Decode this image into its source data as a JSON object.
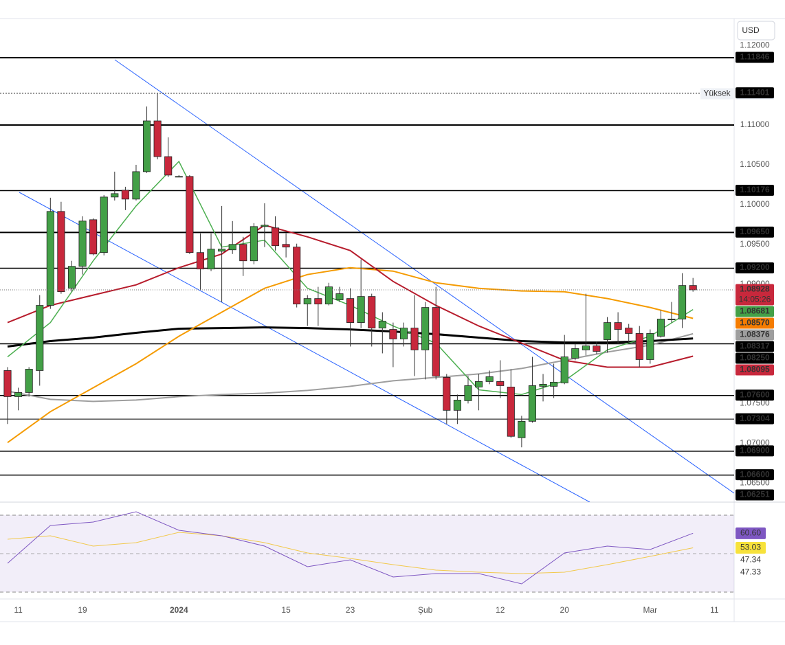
{
  "chart_data": {
    "type": "candlestick",
    "currency": "USD",
    "xlim": [
      -0.706,
      67.84
    ],
    "xticks": [
      {
        "value": 1,
        "label": "11"
      },
      {
        "value": 7,
        "label": "19"
      },
      {
        "value": 16,
        "label": "2024"
      },
      {
        "value": 26,
        "label": "15"
      },
      {
        "value": 32,
        "label": "23"
      },
      {
        "value": 39,
        "label": "Şub"
      },
      {
        "value": 46,
        "label": "12"
      },
      {
        "value": 52,
        "label": "20"
      },
      {
        "value": 60,
        "label": "Mar"
      },
      {
        "value": 66,
        "label": "11"
      }
    ],
    "ylim": [
      1.0626,
      1.1233
    ],
    "yticks": [
      {
        "value": 1.12,
        "label": "1.12000"
      },
      {
        "value": 1.11,
        "label": "1.11000"
      },
      {
        "value": 1.105,
        "label": "1.10500"
      },
      {
        "value": 1.1,
        "label": "1.10000"
      },
      {
        "value": 1.095,
        "label": "1.09500"
      },
      {
        "value": 1.09,
        "label": "1.09000"
      },
      {
        "value": 1.075,
        "label": "1.07500"
      },
      {
        "value": 1.07,
        "label": "1.07000"
      },
      {
        "value": 1.065,
        "label": "1.06500"
      }
    ],
    "up_color": "#43a047",
    "down_color": "#c8283c",
    "wick_color": "#333333",
    "candles": {
      "open": [
        1.07914,
        1.07586,
        1.07638,
        1.07914,
        1.08733,
        1.09914,
        1.08948,
        1.09224,
        1.0981,
        1.09397,
        1.10095,
        1.10181,
        1.10069,
        1.10414,
        1.11052,
        1.10603,
        1.10354,
        1.10354,
        1.09397,
        1.0919,
        1.09414,
        1.09431,
        1.095,
        1.09293,
        1.09724,
        1.09707,
        1.095,
        1.09466,
        1.0875,
        1.08819,
        1.0875,
        1.08802,
        1.08819,
        1.08517,
        1.08845,
        1.08448,
        1.08431,
        1.08311,
        1.08448,
        1.08173,
        1.08707,
        1.07828,
        1.07414,
        1.07535,
        1.07707,
        1.07776,
        1.07776,
        1.07707,
        1.07069,
        1.07276,
        1.07716,
        1.07716,
        1.07759,
        1.08069,
        1.08173,
        1.08224,
        1.08302,
        1.08517,
        1.08448,
        1.0838,
        1.08052,
        1.08345,
        1.08552,
        1.08561,
        1.08983
      ],
      "high": [
        1.07957,
        1.07698,
        1.07957,
        1.08862,
        1.10086,
        1.10035,
        1.09293,
        1.09853,
        1.09827,
        1.10121,
        1.10414,
        1.10224,
        1.105,
        1.11233,
        1.11393,
        1.10845,
        1.10371,
        1.10371,
        1.09638,
        1.09638,
        1.09983,
        1.09793,
        1.09595,
        1.09767,
        1.10017,
        1.09853,
        1.09638,
        1.09509,
        1.08862,
        1.08966,
        1.09017,
        1.08966,
        1.08948,
        1.0931,
        1.0888,
        1.08647,
        1.08517,
        1.08517,
        1.08862,
        1.08776,
        1.08966,
        1.07871,
        1.07612,
        1.07845,
        1.07871,
        1.07914,
        1.08043,
        1.07931,
        1.07345,
        1.08086,
        1.07871,
        1.08,
        1.08362,
        1.08259,
        1.0888,
        1.08276,
        1.08586,
        1.08647,
        1.085,
        1.08474,
        1.08431,
        1.08673,
        1.08776,
        1.09138,
        1.09078
      ],
      "low": [
        1.07242,
        1.07414,
        1.07586,
        1.07724,
        1.0869,
        1.0888,
        1.08905,
        1.09121,
        1.09362,
        1.09362,
        1.10052,
        1.09931,
        1.10052,
        1.10397,
        1.10569,
        1.10346,
        1.10345,
        1.09379,
        1.08931,
        1.09164,
        1.08776,
        1.09379,
        1.09103,
        1.0925,
        1.09466,
        1.09422,
        1.09336,
        1.08707,
        1.08474,
        1.08474,
        1.08733,
        1.08776,
        1.08216,
        1.08448,
        1.08216,
        1.0813,
        1.07957,
        1.08216,
        1.07845,
        1.07802,
        1.07802,
        1.07242,
        1.07242,
        1.075,
        1.07414,
        1.07742,
        1.07569,
        1.07069,
        1.06949,
        1.07259,
        1.07526,
        1.07569,
        1.07742,
        1.08043,
        1.08104,
        1.08121,
        1.08138,
        1.08259,
        1.08259,
        1.07957,
        1.08,
        1.08328,
        1.08517,
        1.08448,
        1.08905
      ],
      "close": [
        1.07586,
        1.07638,
        1.07931,
        1.08733,
        1.09914,
        1.08905,
        1.09224,
        1.09793,
        1.09379,
        1.10095,
        1.10138,
        1.10069,
        1.10414,
        1.11052,
        1.10603,
        1.10371,
        1.10354,
        1.09397,
        1.0919,
        1.0944,
        1.0944,
        1.095,
        1.09293,
        1.09724,
        1.09741,
        1.09483,
        1.09466,
        1.0875,
        1.08819,
        1.0875,
        1.08966,
        1.0888,
        1.08517,
        1.08845,
        1.08448,
        1.08535,
        1.08311,
        1.08448,
        1.08173,
        1.08707,
        1.07845,
        1.07414,
        1.07543,
        1.07724,
        1.07776,
        1.07837,
        1.07724,
        1.07087,
        1.07276,
        1.07724,
        1.07742,
        1.07768,
        1.08086,
        1.0819,
        1.08224,
        1.08155,
        1.08517,
        1.08431,
        1.0838,
        1.08052,
        1.0838,
        1.08561,
        1.08561,
        1.08983,
        1.08928
      ]
    },
    "series": [
      {
        "color": "#9e9e9e",
        "width": 2,
        "x": [
          0,
          4,
          8,
          12,
          16,
          20,
          24,
          28,
          32,
          36,
          40,
          44,
          48,
          52,
          56,
          60,
          64
        ],
        "values": [
          1.07655,
          1.07552,
          1.07526,
          1.07543,
          1.07586,
          1.07612,
          1.07629,
          1.07664,
          1.07716,
          1.07785,
          1.07828,
          1.07871,
          1.0794,
          1.08043,
          1.08147,
          1.08233,
          1.08376
        ]
      },
      {
        "color": "#000000",
        "width": 3,
        "x": [
          0,
          4,
          8,
          12,
          16,
          20,
          24,
          28,
          32,
          36,
          40,
          44,
          48,
          52,
          56,
          60,
          64
        ],
        "values": [
          1.08216,
          1.08285,
          1.08328,
          1.08388,
          1.0844,
          1.08448,
          1.08457,
          1.08448,
          1.08431,
          1.08405,
          1.08371,
          1.08328,
          1.08285,
          1.08267,
          1.08267,
          1.08285,
          1.08317
        ]
      },
      {
        "color": "#f59b00",
        "width": 2,
        "x": [
          0,
          4,
          8,
          12,
          16,
          20,
          24,
          28,
          32,
          36,
          40,
          44,
          48,
          52,
          56,
          60,
          64
        ],
        "values": [
          1.07009,
          1.07397,
          1.07698,
          1.08,
          1.08345,
          1.08647,
          1.08948,
          1.09121,
          1.09207,
          1.09164,
          1.09017,
          1.08948,
          1.08914,
          1.08905,
          1.08819,
          1.08707,
          1.0857
        ]
      },
      {
        "color": "#b71c2c",
        "width": 2,
        "x": [
          0,
          4,
          8,
          12,
          16,
          20,
          24,
          28,
          32,
          36,
          40,
          44,
          48,
          52,
          56,
          60,
          64
        ],
        "values": [
          1.08517,
          1.08733,
          1.08862,
          1.08991,
          1.09207,
          1.09379,
          1.09741,
          1.09595,
          1.09422,
          1.09034,
          1.08733,
          1.08474,
          1.08259,
          1.08043,
          1.07957,
          1.07957,
          1.08095
        ]
      },
      {
        "color": "#4caf50",
        "width": 1.5,
        "x": [
          0,
          4,
          8,
          12,
          16,
          20,
          24,
          28,
          32,
          36,
          40,
          44,
          48,
          52,
          56,
          60,
          64
        ],
        "values": [
          1.08086,
          1.08517,
          1.09293,
          1.09983,
          1.10543,
          1.09466,
          1.09552,
          1.08948,
          1.08733,
          1.08474,
          1.08259,
          1.07672,
          1.07612,
          1.07785,
          1.08173,
          1.08345,
          1.08681
        ]
      }
    ],
    "levels": [
      {
        "value": 1.11846,
        "label": "1.11846",
        "width": 2
      },
      {
        "value": 1.11401,
        "label": "1.11401",
        "width": 1,
        "style": "dotted"
      },
      {
        "value": 1.10176,
        "label": "1.10176",
        "width": 1.5
      },
      {
        "value": 1.0965,
        "label": "1.09650",
        "width": 2
      },
      {
        "value": 1.092,
        "label": "1.09200",
        "width": 1.5
      },
      {
        "value": 1.0825,
        "label": "1.08250",
        "width": 1.5
      },
      {
        "value": 1.076,
        "label": "1.07600",
        "width": 1.5
      },
      {
        "value": 1.07304,
        "label": "1.07304",
        "width": 1
      },
      {
        "value": 1.069,
        "label": "1.06900",
        "width": 1.5
      },
      {
        "value": 1.066,
        "label": "1.06600",
        "width": 1.5
      },
      {
        "value": 1.06251,
        "label": "1.06251",
        "width": 1
      }
    ],
    "unlabeled_levels": [
      1.11
    ],
    "high": {
      "label": "Yüksek",
      "value": 1.11393
    },
    "price_tags": [
      {
        "value": 1.08928,
        "label": "1.08928",
        "color": "#c8283c",
        "countdown": "14:05:26"
      },
      {
        "value": 1.08681,
        "label": "1.08681",
        "color": "#43a047"
      },
      {
        "value": 1.0857,
        "label": "1.08570",
        "color": "#f57c00"
      },
      {
        "value": 1.08376,
        "label": "1.08376",
        "color": "#9e9e9e"
      },
      {
        "value": 1.08317,
        "label": "1.08317",
        "color": "#000000"
      },
      {
        "value": 1.08095,
        "label": "1.08095",
        "color": "#c8283c"
      }
    ],
    "rsi": {
      "ylim": [
        30,
        70
      ],
      "series": [
        {
          "color": "#f2c94c",
          "width": 1,
          "x": [
            0,
            4,
            8,
            12,
            16,
            20,
            24,
            28,
            32,
            36,
            40,
            44,
            48,
            52,
            56,
            60,
            64
          ],
          "values": [
            57.5,
            59.29,
            53.93,
            55.71,
            61.07,
            59.29,
            55.71,
            50.36,
            47.5,
            44.29,
            41.43,
            40.36,
            39.64,
            40.36,
            44.29,
            48.57,
            53.03
          ]
        },
        {
          "color": "#7e57c2",
          "width": 1,
          "x": [
            0,
            4,
            8,
            12,
            16,
            20,
            24,
            28,
            32,
            36,
            40,
            44,
            48,
            52,
            56,
            60,
            64
          ],
          "values": [
            45.0,
            64.64,
            66.43,
            71.79,
            62.14,
            59.29,
            53.93,
            43.21,
            46.79,
            37.86,
            39.64,
            39.64,
            34.29,
            50.36,
            53.93,
            52.14,
            60.6
          ]
        }
      ],
      "tags": [
        {
          "value": 60.6,
          "label": "60.60",
          "color": "#7e57c2",
          "text_color": "#ffffff"
        },
        {
          "value": 53.03,
          "label": "53.03",
          "color": "#f7e23b",
          "text_color": "#222222"
        }
      ],
      "labels": [
        {
          "value": 47.34,
          "label": "47.34"
        },
        {
          "value": 47.33,
          "label": "47.33"
        }
      ]
    }
  }
}
